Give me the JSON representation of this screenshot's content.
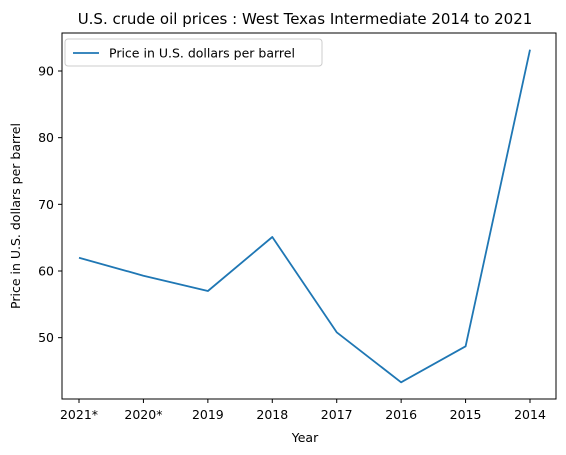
{
  "chart_data": {
    "type": "line",
    "title": "U.S. crude oil prices : West Texas Intermediate 2014 to 2021",
    "xlabel": "Year",
    "ylabel": "Price in U.S. dollars per barrel",
    "categories": [
      "2021*",
      "2020*",
      "2019",
      "2018",
      "2017",
      "2016",
      "2015",
      "2014"
    ],
    "series": [
      {
        "name": "Price in U.S. dollars per barrel",
        "color": "#1f77b4",
        "values": [
          62.0,
          59.3,
          57.0,
          65.1,
          50.8,
          43.3,
          48.7,
          93.2
        ]
      }
    ],
    "yticks": [
      50,
      60,
      70,
      80,
      90
    ],
    "ylim": [
      40.8,
      95.7
    ],
    "grid": false,
    "legend_position": "upper-left"
  }
}
